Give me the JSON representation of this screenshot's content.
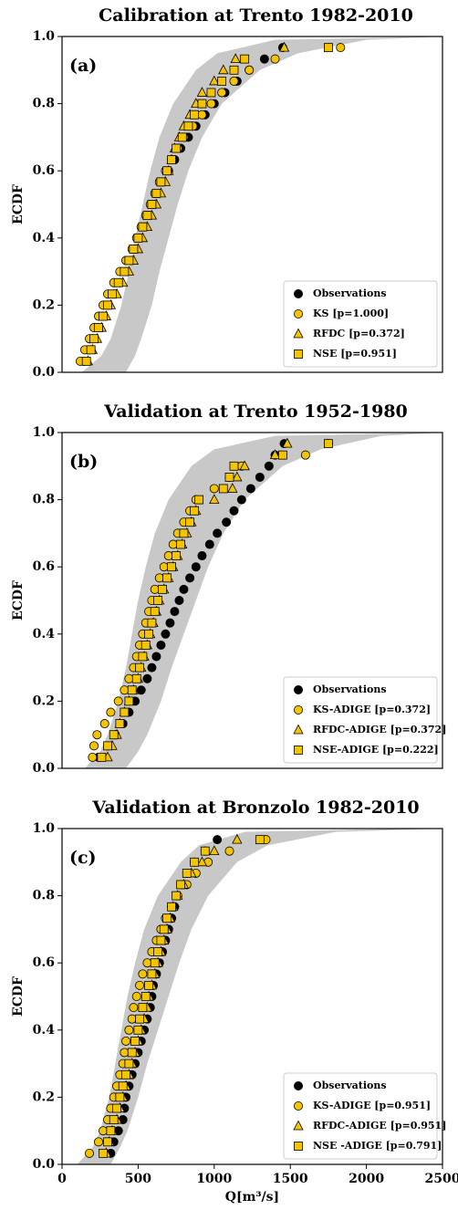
{
  "chart_data": [
    {
      "type": "scatter",
      "title": "Calibration at Trento 1982-2010",
      "panel_label": "(a)",
      "ylabel": "ECDF",
      "xlim": [
        0,
        2500
      ],
      "ylim": [
        0,
        1
      ],
      "yticks": [
        {
          "value": 0,
          "label": "0.0"
        },
        0.2,
        0.4,
        0.6,
        0.8,
        {
          "value": 1,
          "label": "1.0"
        }
      ],
      "legend": "lower right",
      "band": {
        "color": "#c8c8c8",
        "y": [
          0,
          0.05,
          0.1,
          0.2,
          0.3,
          0.4,
          0.5,
          0.6,
          0.7,
          0.8,
          0.9,
          0.95,
          0.99,
          1
        ],
        "x_low": [
          130,
          260,
          320,
          390,
          440,
          480,
          530,
          580,
          640,
          730,
          880,
          1020,
          1400,
          2500
        ],
        "x_high": [
          420,
          480,
          520,
          590,
          640,
          700,
          760,
          830,
          920,
          1050,
          1300,
          1550,
          2000,
          2500
        ]
      },
      "y": [
        0.033,
        0.067,
        0.1,
        0.133,
        0.167,
        0.2,
        0.233,
        0.267,
        0.3,
        0.333,
        0.367,
        0.4,
        0.433,
        0.467,
        0.5,
        0.533,
        0.567,
        0.6,
        0.633,
        0.667,
        0.7,
        0.733,
        0.767,
        0.8,
        0.833,
        0.867,
        0.9,
        0.933,
        0.967
      ],
      "series": [
        {
          "name": "Observations",
          "color": "#000000",
          "marker": "circle",
          "x": [
            145,
            175,
            200,
            235,
            265,
            300,
            340,
            380,
            420,
            450,
            480,
            510,
            540,
            570,
            600,
            630,
            660,
            700,
            740,
            780,
            830,
            880,
            940,
            1000,
            1070,
            1150,
            1230,
            1330,
            1450
          ]
        },
        {
          "name": "KS [p=1.000]",
          "color": "#f5c400",
          "marker": "circle",
          "x": [
            120,
            150,
            180,
            210,
            240,
            270,
            300,
            340,
            380,
            420,
            460,
            490,
            520,
            550,
            580,
            610,
            640,
            680,
            720,
            760,
            800,
            860,
            920,
            980,
            1050,
            1130,
            1230,
            1400,
            1830
          ]
        },
        {
          "name": "RFDC [p=0.372]",
          "color": "#f5c400",
          "marker": "triangle",
          "x": [
            170,
            200,
            230,
            260,
            290,
            320,
            360,
            400,
            440,
            470,
            500,
            530,
            560,
            590,
            620,
            650,
            680,
            700,
            720,
            740,
            770,
            800,
            840,
            880,
            920,
            1000,
            1060,
            1140,
            1460
          ]
        },
        {
          "name": "NSE  [p=0.951]",
          "color": "#f5c400",
          "marker": "square",
          "x": [
            160,
            190,
            210,
            240,
            270,
            300,
            330,
            370,
            410,
            440,
            470,
            500,
            530,
            560,
            590,
            620,
            650,
            690,
            720,
            750,
            790,
            830,
            870,
            920,
            980,
            1050,
            1130,
            1200,
            1750
          ]
        }
      ]
    },
    {
      "type": "scatter",
      "title": "Validation at Trento 1952-1980",
      "panel_label": "(b)",
      "ylabel": "ECDF",
      "xlim": [
        0,
        2500
      ],
      "ylim": [
        0,
        1
      ],
      "yticks": [
        {
          "value": 0,
          "label": "0.0"
        },
        0.2,
        0.4,
        0.6,
        0.8,
        {
          "value": 1,
          "label": "1.0"
        }
      ],
      "legend": "lower right",
      "band": {
        "color": "#c8c8c8",
        "y": [
          0,
          0.05,
          0.1,
          0.2,
          0.3,
          0.4,
          0.5,
          0.6,
          0.7,
          0.8,
          0.9,
          0.95,
          0.99,
          1
        ],
        "x_low": [
          150,
          250,
          300,
          370,
          420,
          460,
          500,
          550,
          610,
          700,
          850,
          1000,
          1400,
          2500
        ],
        "x_high": [
          420,
          500,
          560,
          650,
          720,
          800,
          880,
          960,
          1060,
          1200,
          1450,
          1700,
          2100,
          2500
        ]
      },
      "y": [
        0.033,
        0.067,
        0.1,
        0.133,
        0.167,
        0.2,
        0.233,
        0.267,
        0.3,
        0.333,
        0.367,
        0.4,
        0.433,
        0.467,
        0.5,
        0.533,
        0.567,
        0.6,
        0.633,
        0.667,
        0.7,
        0.733,
        0.767,
        0.8,
        0.833,
        0.867,
        0.9,
        0.933,
        0.967
      ],
      "series": [
        {
          "name": "Observations",
          "color": "#000000",
          "marker": "circle",
          "x": [
            240,
            300,
            350,
            400,
            440,
            480,
            520,
            560,
            590,
            620,
            650,
            680,
            710,
            740,
            770,
            800,
            840,
            880,
            920,
            970,
            1020,
            1080,
            1130,
            1180,
            1240,
            1300,
            1360,
            1400,
            1460
          ]
        },
        {
          "name": "KS-ADIGE [p=0.372]",
          "color": "#f5c400",
          "marker": "circle",
          "x": [
            200,
            210,
            230,
            280,
            320,
            370,
            410,
            440,
            470,
            490,
            510,
            530,
            550,
            570,
            590,
            610,
            640,
            670,
            700,
            730,
            760,
            800,
            840,
            880,
            1000,
            1100,
            1180,
            1600,
            1750
          ]
        },
        {
          "name": "RFDC-ADIGE [p=0.372]",
          "color": "#f5c400",
          "marker": "triangle",
          "x": [
            300,
            330,
            360,
            380,
            410,
            440,
            470,
            500,
            520,
            540,
            560,
            580,
            600,
            620,
            640,
            670,
            700,
            730,
            760,
            790,
            820,
            850,
            880,
            1000,
            1120,
            1150,
            1200,
            1400,
            1480
          ]
        },
        {
          "name": "NSE-ADIGE [p=0.222]",
          "color": "#f5c400",
          "marker": "square",
          "x": [
            260,
            300,
            340,
            380,
            410,
            440,
            460,
            490,
            510,
            530,
            550,
            570,
            590,
            610,
            630,
            660,
            690,
            720,
            750,
            780,
            800,
            840,
            870,
            900,
            1060,
            1100,
            1130,
            1450,
            1750
          ]
        }
      ]
    },
    {
      "type": "scatter",
      "title": "Validation at Bronzolo 1982-2010",
      "panel_label": "(c)",
      "ylabel": "ECDF",
      "xlabel": "Q[m³/s]",
      "xlim": [
        0,
        2500
      ],
      "xticks": [
        0,
        500,
        1000,
        1500,
        2000,
        2500
      ],
      "ylim": [
        0,
        1
      ],
      "yticks": [
        {
          "value": 0,
          "label": "0.0"
        },
        0.2,
        0.4,
        0.6,
        0.8,
        {
          "value": 1,
          "label": "1.0"
        }
      ],
      "legend": "lower right",
      "band": {
        "color": "#c8c8c8",
        "y": [
          0,
          0.05,
          0.1,
          0.2,
          0.3,
          0.4,
          0.5,
          0.6,
          0.7,
          0.8,
          0.9,
          0.95,
          0.99,
          1
        ],
        "x_low": [
          100,
          200,
          250,
          310,
          350,
          390,
          430,
          480,
          540,
          630,
          780,
          900,
          1200,
          2300
        ],
        "x_high": [
          320,
          380,
          430,
          500,
          560,
          630,
          700,
          770,
          850,
          960,
          1150,
          1350,
          1800,
          2500
        ]
      },
      "y": [
        0.033,
        0.067,
        0.1,
        0.133,
        0.167,
        0.2,
        0.233,
        0.267,
        0.3,
        0.333,
        0.367,
        0.4,
        0.433,
        0.467,
        0.5,
        0.533,
        0.567,
        0.6,
        0.633,
        0.667,
        0.7,
        0.733,
        0.767,
        0.8,
        0.833,
        0.867,
        0.9,
        0.933,
        0.967
      ],
      "series": [
        {
          "name": "Observations",
          "color": "#000000",
          "marker": "circle",
          "x": [
            320,
            340,
            370,
            400,
            410,
            420,
            440,
            460,
            480,
            500,
            520,
            540,
            560,
            580,
            590,
            600,
            620,
            640,
            660,
            680,
            700,
            720,
            740,
            760,
            790,
            820,
            870,
            940,
            1020
          ]
        },
        {
          "name": "KS-ADIGE [p=0.951]",
          "color": "#f5c400",
          "marker": "circle",
          "x": [
            180,
            240,
            270,
            300,
            320,
            340,
            360,
            380,
            400,
            410,
            420,
            440,
            460,
            470,
            490,
            510,
            530,
            560,
            590,
            620,
            650,
            680,
            720,
            760,
            820,
            880,
            960,
            1100,
            1340
          ]
        },
        {
          "name": "RFDC-ADIGE [p=0.951]",
          "color": "#f5c400",
          "marker": "triangle",
          "x": [
            290,
            310,
            330,
            360,
            380,
            400,
            420,
            440,
            460,
            480,
            500,
            520,
            540,
            560,
            570,
            590,
            610,
            630,
            650,
            670,
            690,
            710,
            730,
            760,
            800,
            850,
            920,
            1000,
            1150
          ]
        },
        {
          "name": "NSE -ADIGE [p=0.791]",
          "color": "#f5c400",
          "marker": "square",
          "x": [
            270,
            300,
            320,
            340,
            360,
            380,
            400,
            420,
            440,
            460,
            480,
            500,
            510,
            530,
            550,
            570,
            590,
            610,
            630,
            650,
            670,
            690,
            720,
            750,
            780,
            820,
            870,
            940,
            1300
          ]
        }
      ]
    }
  ]
}
